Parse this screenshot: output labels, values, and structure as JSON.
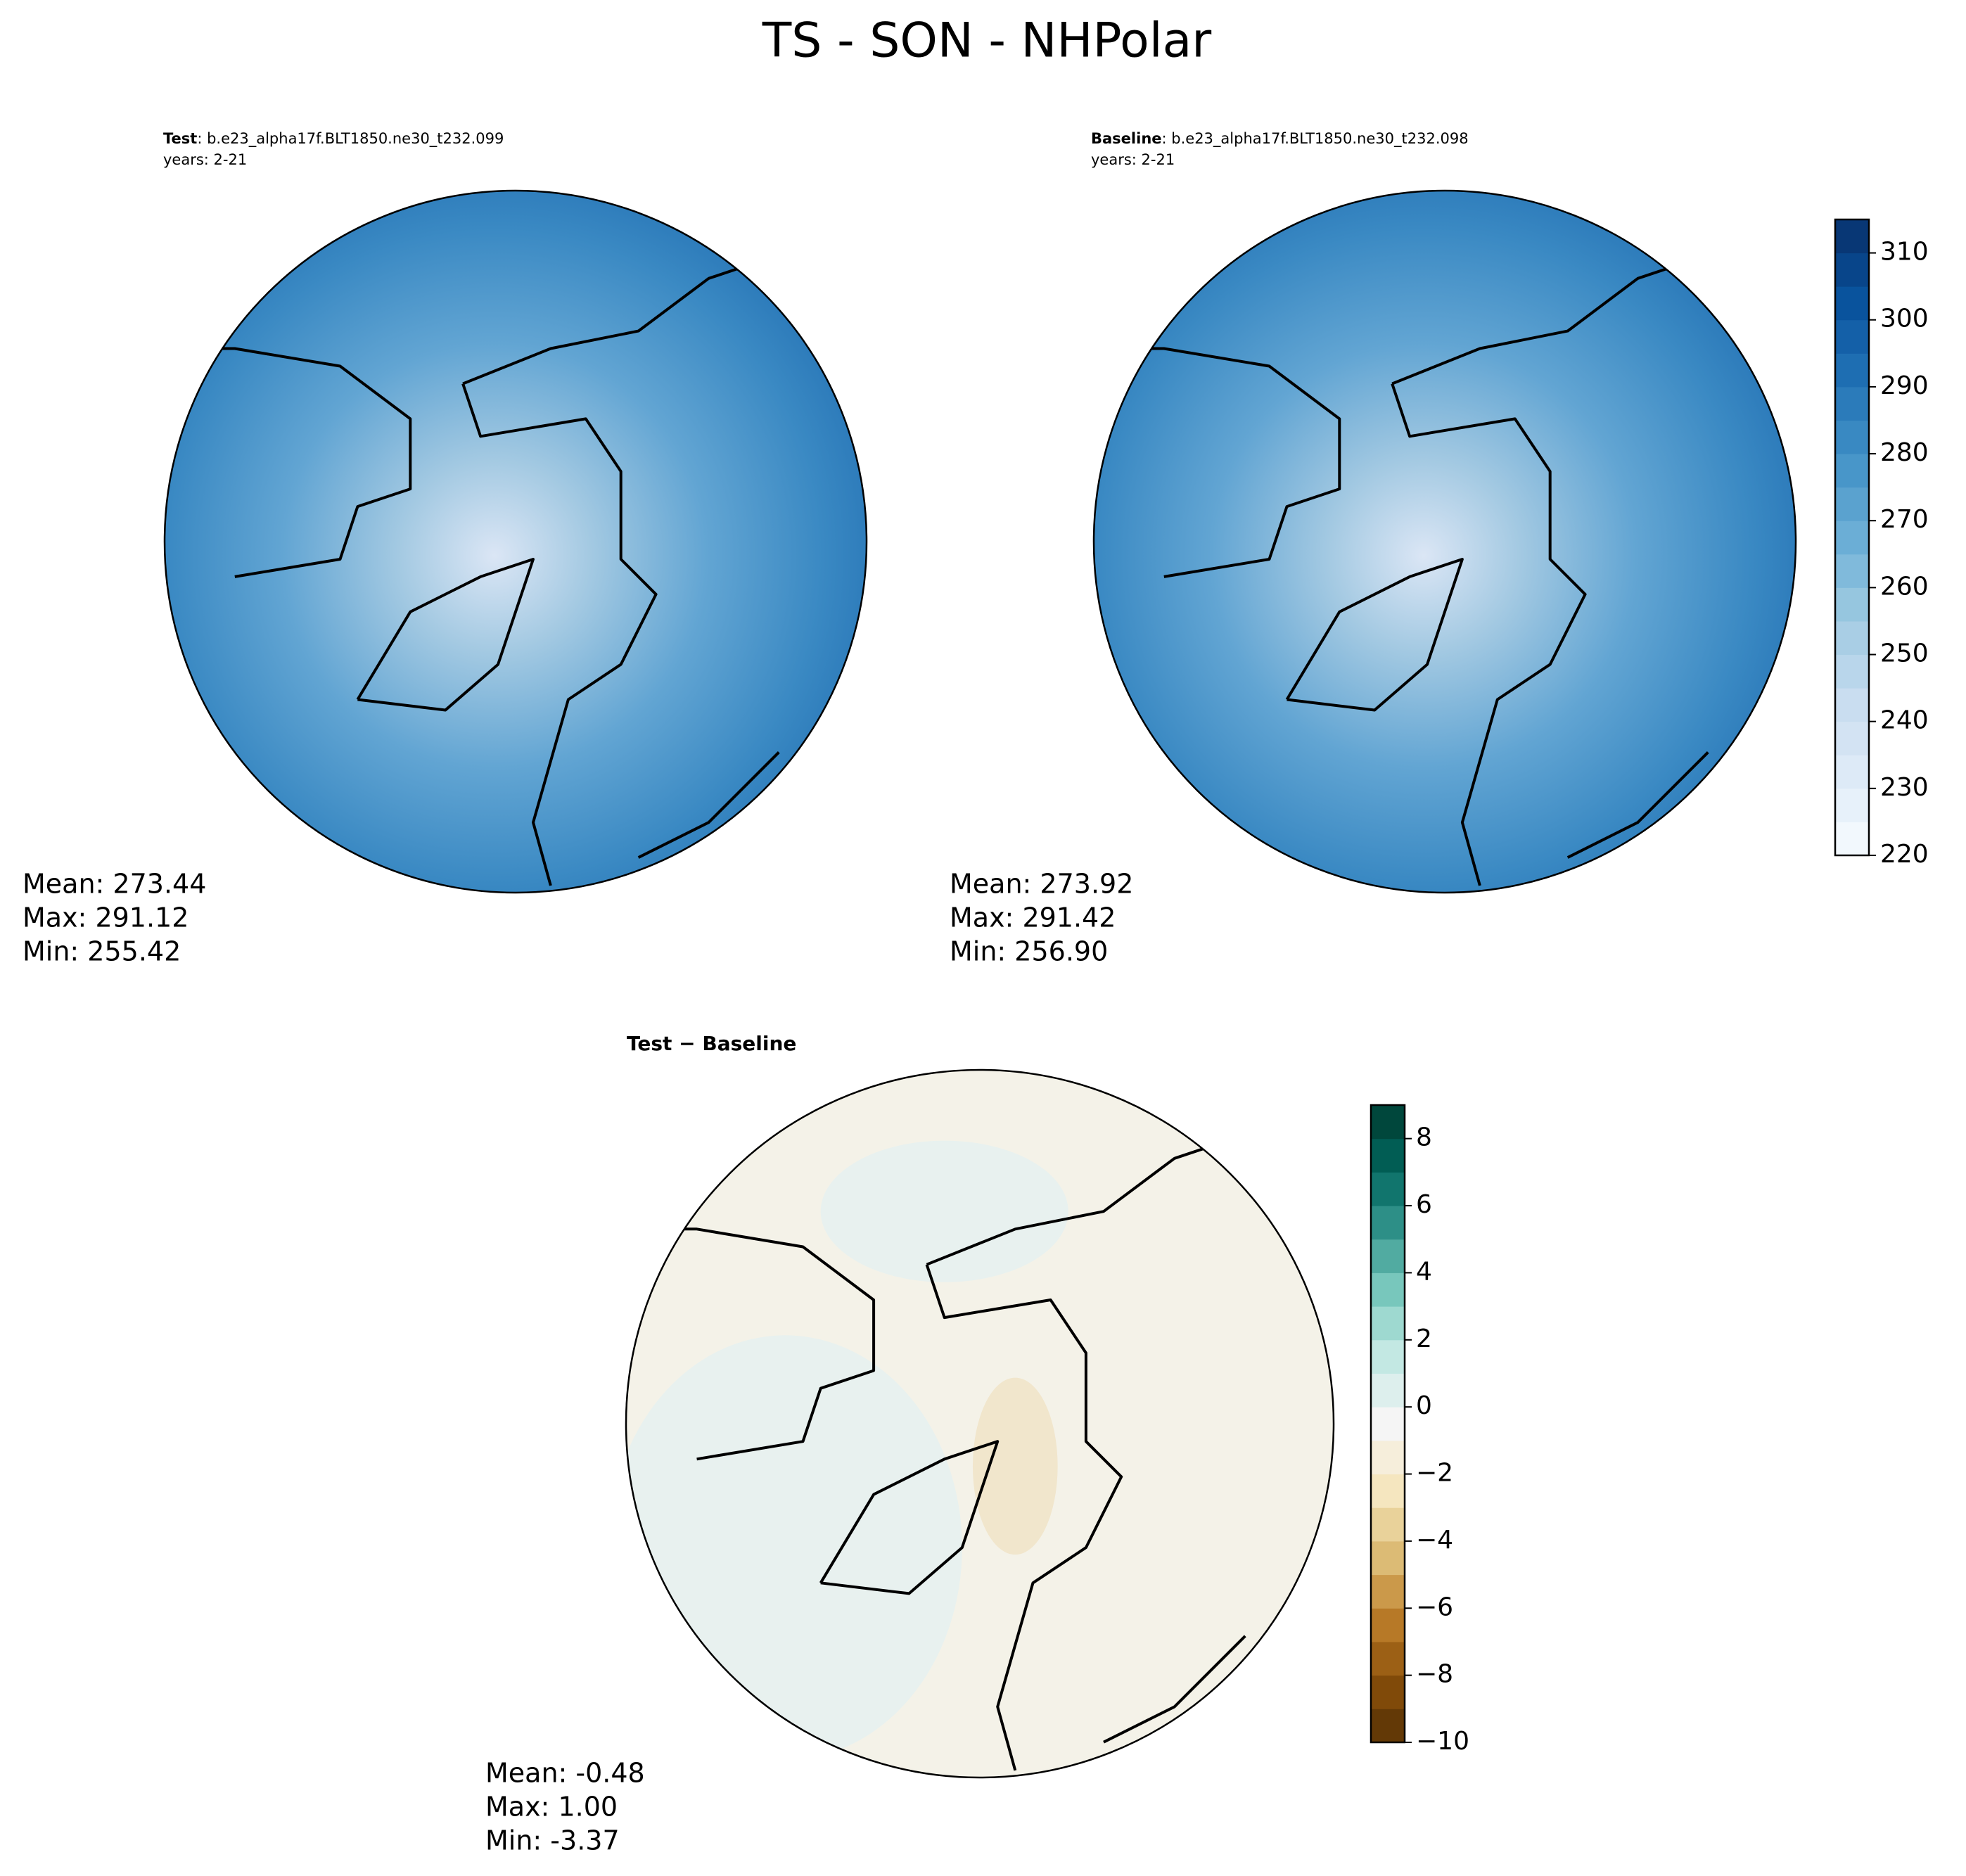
{
  "title": "TS - SON - NHPolar",
  "panels": [
    {
      "label": "Test",
      "case": ": b.e23_alpha17f.BLT1850.ne30_t232.099",
      "years": "years: 2-21",
      "stats": [
        "Mean: 273.44",
        "Max: 291.12",
        "Min: 255.42"
      ],
      "colorbar": 0
    },
    {
      "label": "Baseline",
      "case": ": b.e23_alpha17f.BLT1850.ne30_t232.098",
      "years": "years: 2-21",
      "stats": [
        "Mean: 273.92",
        "Max: 291.42",
        "Min: 256.90"
      ],
      "colorbar": 0
    },
    {
      "label": "Test − Baseline",
      "stats": [
        "Mean: -0.48",
        "Max:  1.00",
        "Min: -3.37"
      ],
      "colorbar": 1
    }
  ],
  "colorbars": [
    {
      "lim": [
        220,
        315
      ],
      "step": 5,
      "colors": [
        "#f7fbff",
        "#deebf7",
        "#c6dbef",
        "#9ecae1",
        "#6baed6",
        "#4292c6",
        "#2171b5",
        "#08519c",
        "#08306b"
      ],
      "ticks": [
        220,
        230,
        240,
        250,
        260,
        270,
        280,
        290,
        300,
        310
      ]
    },
    {
      "lim": [
        -10,
        9
      ],
      "step": 1,
      "colors": [
        "#543005",
        "#8c510a",
        "#bf812d",
        "#dfc27d",
        "#f6e8c3",
        "#f5f5f5",
        "#c7eae5",
        "#80cdc1",
        "#35978f",
        "#01665e",
        "#003c30"
      ],
      "ticks": [
        {
          "value": -10,
          "label": "−10"
        },
        {
          "value": -8,
          "label": "−8"
        },
        {
          "value": -6,
          "label": "−6"
        },
        {
          "value": -4,
          "label": "−4"
        },
        {
          "value": -2,
          "label": "−2"
        },
        0,
        2,
        4,
        6,
        8
      ]
    }
  ]
}
